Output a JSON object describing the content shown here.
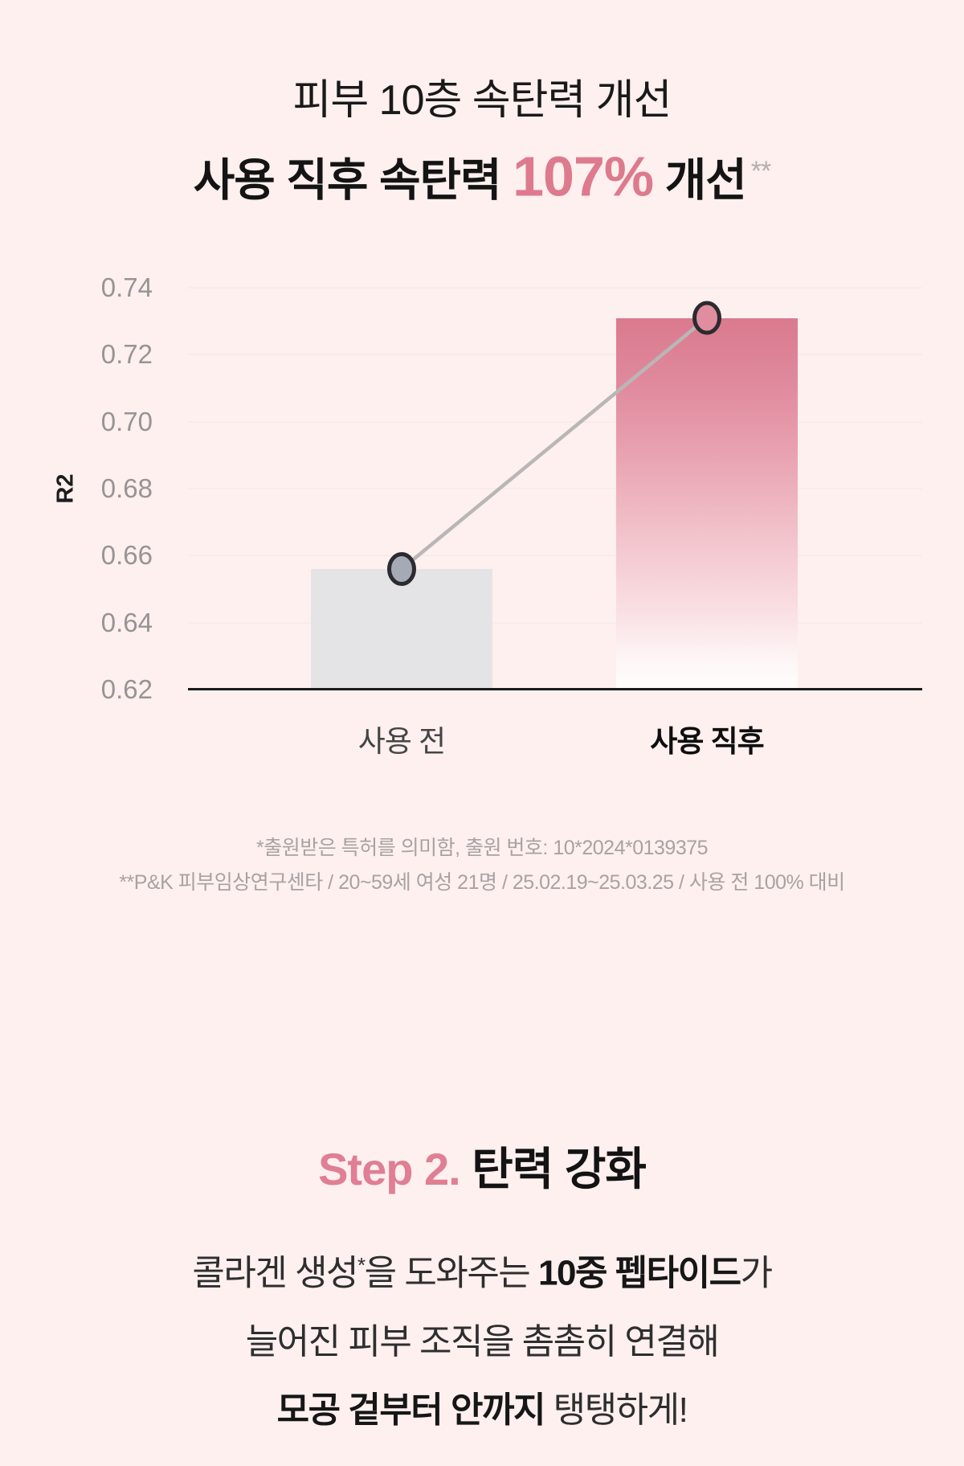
{
  "page": {
    "background_color": "#fdf0ef",
    "accent_color": "#dd7a8e"
  },
  "header": {
    "title": "피부 10층 속탄력 개선",
    "subtitle": {
      "prefix": "사용 직후 속탄력 ",
      "highlight": "107%",
      "suffix": " 개선",
      "footnote_marker": "**"
    }
  },
  "chart_data": {
    "type": "bar",
    "categories": [
      "사용 전",
      "사용 직후"
    ],
    "values": [
      0.656,
      0.731
    ],
    "series": [
      {
        "name": "R2",
        "values": [
          0.656,
          0.731
        ]
      }
    ],
    "title": "",
    "xlabel": "",
    "ylabel": "R2",
    "ylim": [
      0.62,
      0.74
    ],
    "yticks": [
      0.74,
      0.72,
      0.7,
      0.68,
      0.66,
      0.64,
      0.62
    ],
    "grid": true,
    "legend_position": "none",
    "overlay_trend_line": true,
    "emphasis_category_index": 1,
    "bar_colors": [
      "#e4e4e6",
      "#da7a8f→#ffffff gradient"
    ],
    "marker_fills": [
      "#a6a9b6",
      "#e18da0"
    ],
    "marker_stroke": "#2b2b30",
    "trend_line_color": "#bab6b6"
  },
  "footnotes": {
    "line1": "*출원받은 특허를 의미함, 출원 번호: 10*2024*0139375",
    "line2": "**P&K 피부임상연구센타 / 20~59세 여성 21명 / 25.02.19~25.03.25 / 사용 전 100% 대비"
  },
  "step_section": {
    "step_label": "Step 2.",
    "step_title": " 탄력 강화",
    "body": {
      "line1": {
        "seg1": "콜라겐 생성",
        "sup": "*",
        "seg2": "을 도와주는 ",
        "bold": "10중 펩타이드",
        "seg3": "가"
      },
      "line2": "늘어진 피부 조직을 촘촘히 연결해",
      "line3": {
        "bold": "모공 겉부터 안까지",
        "rest": " 탱탱하게!"
      }
    }
  }
}
